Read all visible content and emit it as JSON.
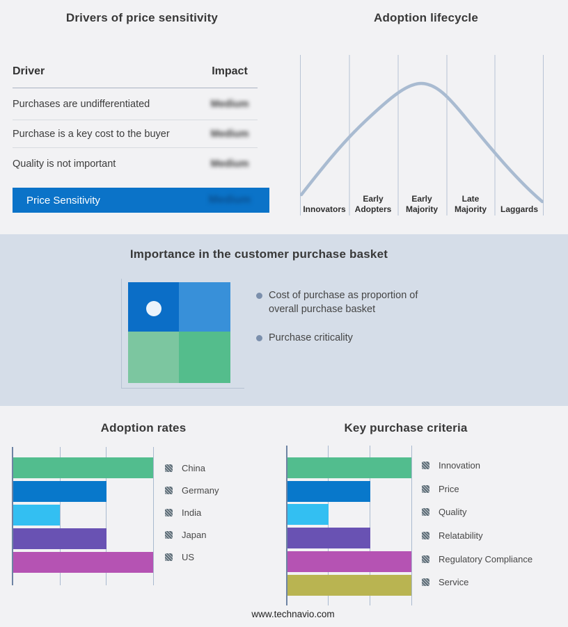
{
  "colors": {
    "page_background": "#f2f2f4",
    "band_background": "#d5dde8",
    "curve": "#a9bbd1",
    "gridline": "#a9b9cf"
  },
  "drivers_table": {
    "title": "Drivers of price sensitivity",
    "col_driver": "Driver",
    "col_impact": "Impact",
    "rows": [
      {
        "driver": "Purchases are undifferentiated",
        "impact": "Medium"
      },
      {
        "driver": "Purchase is a key cost to the buyer",
        "impact": "Medium"
      },
      {
        "driver": "Quality is not important",
        "impact": "Medium"
      }
    ],
    "summary_row": {
      "label": "Price Sensitivity",
      "impact": "Medium"
    },
    "highlight_color": "#0b73c8"
  },
  "purchase_basket": {
    "title": "Importance in the customer purchase basket",
    "bullets": [
      "Cost of purchase as proportion of overall purchase basket",
      "Purchase criticality"
    ],
    "quadrant_colors": {
      "top_left": "#0b6ec7",
      "top_right": "#3890d9",
      "bottom_left": "#7cc6a0",
      "bottom_right": "#54bd8c"
    }
  },
  "chart_data": [
    {
      "type": "line",
      "title": "Adoption lifecycle",
      "x_categories": [
        "Innovators",
        "Early Adopters",
        "Early Majority",
        "Late Majority",
        "Laggards"
      ],
      "shape": "bell curve rising from Innovators, peaking in Early Majority, falling through Laggards",
      "grid": "vertical category separators only",
      "curve_color": "#a9bbd1"
    },
    {
      "type": "bar",
      "orientation": "horizontal",
      "title": "Adoption rates",
      "categories": [
        "China",
        "Germany",
        "India",
        "Japan",
        "US"
      ],
      "values": [
        3,
        2,
        1,
        2,
        3
      ],
      "xlim": [
        0,
        3
      ],
      "gridlines": [
        1,
        2,
        3
      ],
      "bar_colors": [
        "#52bd8e",
        "#0878cb",
        "#33bff2",
        "#6952b3",
        "#b553b3"
      ],
      "legend_position": "right"
    },
    {
      "type": "bar",
      "orientation": "horizontal",
      "title": "Key purchase criteria",
      "categories": [
        "Innovation",
        "Price",
        "Quality",
        "Relatability",
        "Regulatory Compliance",
        "Service"
      ],
      "values": [
        3,
        2,
        1,
        2,
        3,
        3
      ],
      "xlim": [
        0,
        3
      ],
      "gridlines": [
        1,
        2,
        3
      ],
      "bar_colors": [
        "#52bd8e",
        "#0878cb",
        "#33bff2",
        "#6952b3",
        "#b553b3",
        "#b9b451"
      ],
      "legend_position": "right"
    }
  ],
  "footer": {
    "url_text": "www.technavio.com"
  }
}
